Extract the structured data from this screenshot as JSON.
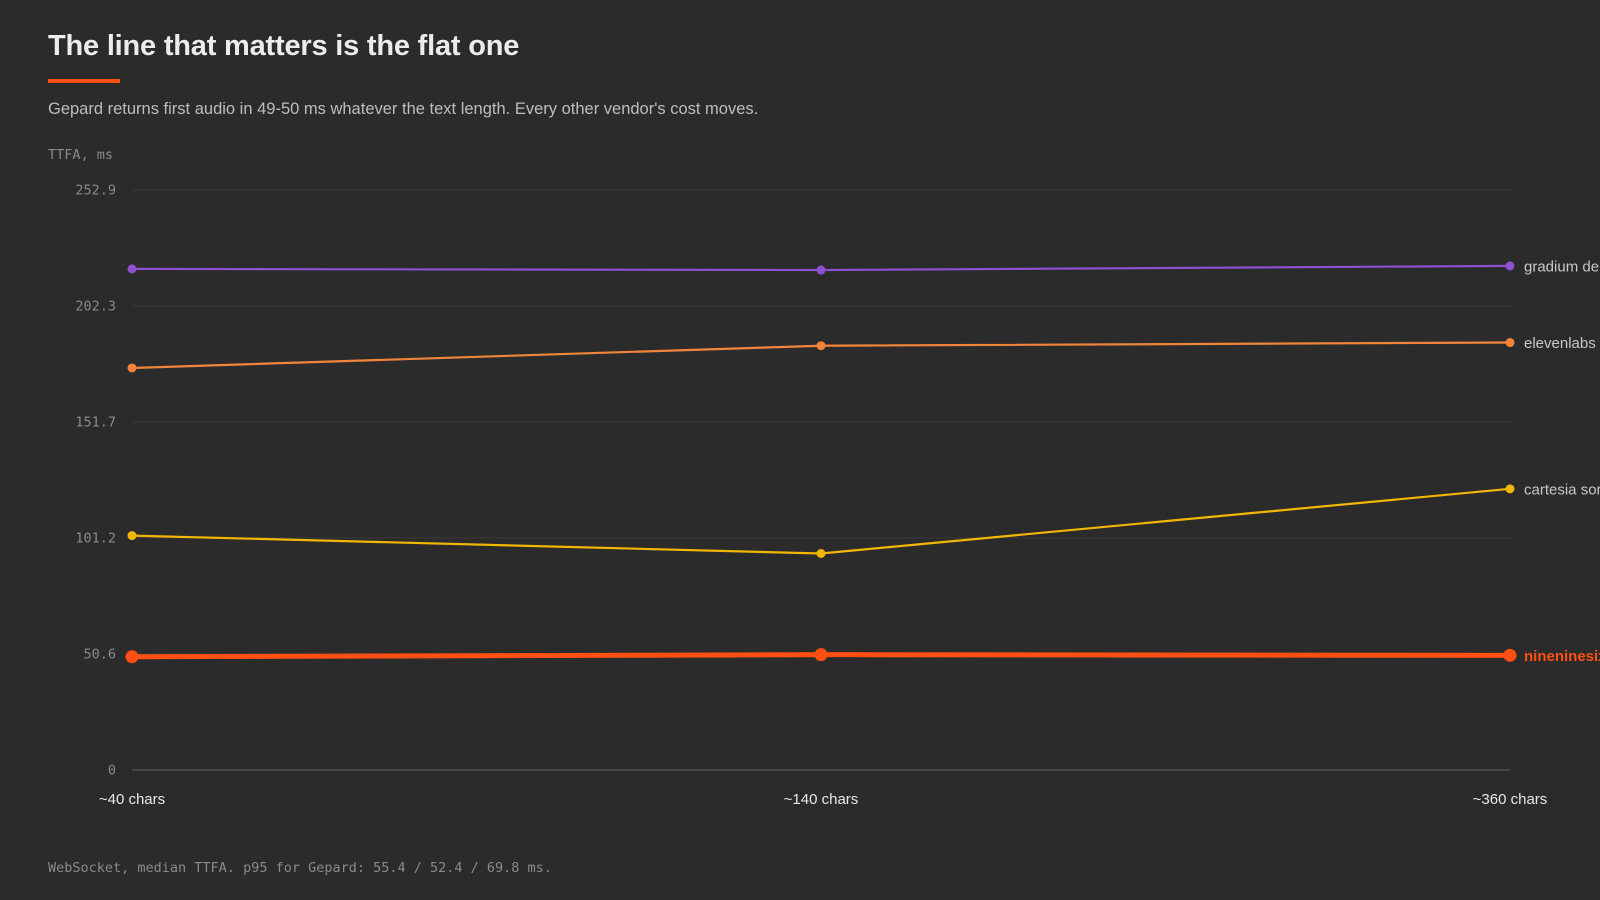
{
  "header": {
    "title": "The line that matters is the flat one",
    "subtitle": "Gepard returns first audio in 49-50 ms whatever the text length. Every other vendor's cost moves."
  },
  "footnote": "WebSocket, median TTFA. p95 for Gepard: 55.4 / 52.4 / 69.8 ms.",
  "colors": {
    "background": "#2b2b2b",
    "accent": "#ff4f12",
    "gradium": "#8e4fd0",
    "elevenlabs": "#f0853a",
    "cartesia": "#f2b705",
    "gridline": "#3a3a3a",
    "axis": "#555555"
  },
  "chart_data": {
    "type": "line",
    "title": "The line that matters is the flat one",
    "subtitle": "Gepard returns first audio in 49-50 ms whatever the text length. Every other vendor's cost moves.",
    "xlabel": "",
    "ylabel": "TTFA, ms",
    "categories": [
      "~40 chars",
      "~140 chars",
      "~360 chars"
    ],
    "ylim": [
      0,
      252.9
    ],
    "yticks": [
      "0",
      "50.6",
      "101.2",
      "151.7",
      "202.3",
      "252.9"
    ],
    "ytick_values": [
      0,
      50.6,
      101.2,
      151.7,
      202.3,
      252.9
    ],
    "grid": true,
    "legend": "direct labels at line ends (right)",
    "series": [
      {
        "name": "gradium de",
        "color": "#8e4fd0",
        "values": [
          218.5,
          218.0,
          219.8
        ],
        "emphasis": false
      },
      {
        "name": "elevenlabs",
        "color": "#f0853a",
        "values": [
          175.3,
          185.0,
          186.4
        ],
        "emphasis": false
      },
      {
        "name": "cartesia sor",
        "color": "#f2b705",
        "values": [
          102.2,
          94.4,
          122.6
        ],
        "emphasis": false
      },
      {
        "name": "nineninesix",
        "color": "#ff4f12",
        "values": [
          49.4,
          50.3,
          50.0
        ],
        "emphasis": true
      }
    ]
  }
}
